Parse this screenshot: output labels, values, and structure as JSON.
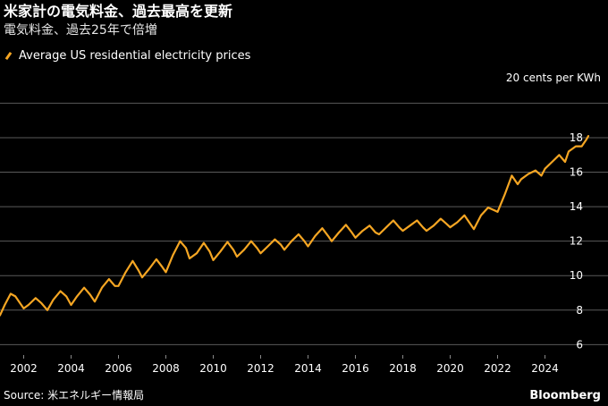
{
  "header": {
    "title": "米家計の電気料金、過去最高を更新",
    "subtitle": "電気料金、過去25年で倍増"
  },
  "colors": {
    "background": "#000000",
    "series": "#f5a623",
    "grid": "#5a5a5a",
    "text": "#ffffff"
  },
  "footer": {
    "source": "Source: 米エネルギー情報局",
    "brand": "Bloomberg"
  },
  "chart_data": {
    "type": "line",
    "unit_label": "20 cents per KWh",
    "legend": "Average US residential electricity prices",
    "legend_position": "top-left",
    "grid": true,
    "y_axis_side": "right",
    "xlim": [
      2001.0,
      2025.83
    ],
    "ylim": [
      5.5,
      20.8
    ],
    "y_ticks": [
      6,
      8,
      10,
      12,
      14,
      16,
      18
    ],
    "x_ticks": [
      2002,
      2004,
      2006,
      2008,
      2010,
      2012,
      2014,
      2016,
      2018,
      2020,
      2022,
      2024
    ],
    "series": [
      {
        "name": "Average US residential electricity prices",
        "anchors": [
          [
            2001.0,
            7.7
          ],
          [
            2001.2,
            8.3
          ],
          [
            2001.45,
            8.95
          ],
          [
            2001.65,
            8.8
          ],
          [
            2001.85,
            8.4
          ],
          [
            2002.0,
            8.1
          ],
          [
            2002.2,
            8.3
          ],
          [
            2002.5,
            8.7
          ],
          [
            2002.75,
            8.4
          ],
          [
            2003.0,
            8.0
          ],
          [
            2003.25,
            8.6
          ],
          [
            2003.55,
            9.1
          ],
          [
            2003.8,
            8.8
          ],
          [
            2004.0,
            8.3
          ],
          [
            2004.25,
            8.8
          ],
          [
            2004.55,
            9.3
          ],
          [
            2004.8,
            8.9
          ],
          [
            2005.0,
            8.5
          ],
          [
            2005.3,
            9.3
          ],
          [
            2005.6,
            9.8
          ],
          [
            2005.85,
            9.4
          ],
          [
            2006.0,
            9.4
          ],
          [
            2006.3,
            10.2
          ],
          [
            2006.6,
            10.85
          ],
          [
            2006.85,
            10.3
          ],
          [
            2007.0,
            9.9
          ],
          [
            2007.3,
            10.4
          ],
          [
            2007.6,
            10.95
          ],
          [
            2007.85,
            10.5
          ],
          [
            2008.0,
            10.2
          ],
          [
            2008.3,
            11.2
          ],
          [
            2008.6,
            12.0
          ],
          [
            2008.85,
            11.6
          ],
          [
            2009.0,
            11.0
          ],
          [
            2009.3,
            11.3
          ],
          [
            2009.6,
            11.9
          ],
          [
            2009.85,
            11.4
          ],
          [
            2010.0,
            10.9
          ],
          [
            2010.3,
            11.4
          ],
          [
            2010.6,
            11.95
          ],
          [
            2010.85,
            11.5
          ],
          [
            2011.0,
            11.1
          ],
          [
            2011.3,
            11.5
          ],
          [
            2011.6,
            12.0
          ],
          [
            2011.85,
            11.6
          ],
          [
            2012.0,
            11.3
          ],
          [
            2012.3,
            11.7
          ],
          [
            2012.6,
            12.1
          ],
          [
            2012.85,
            11.8
          ],
          [
            2013.0,
            11.5
          ],
          [
            2013.3,
            12.0
          ],
          [
            2013.6,
            12.4
          ],
          [
            2013.85,
            12.0
          ],
          [
            2014.0,
            11.7
          ],
          [
            2014.3,
            12.3
          ],
          [
            2014.6,
            12.75
          ],
          [
            2014.85,
            12.3
          ],
          [
            2015.0,
            12.0
          ],
          [
            2015.3,
            12.5
          ],
          [
            2015.6,
            12.95
          ],
          [
            2015.85,
            12.5
          ],
          [
            2016.0,
            12.2
          ],
          [
            2016.3,
            12.6
          ],
          [
            2016.6,
            12.9
          ],
          [
            2016.85,
            12.5
          ],
          [
            2017.0,
            12.4
          ],
          [
            2017.3,
            12.8
          ],
          [
            2017.6,
            13.2
          ],
          [
            2017.85,
            12.8
          ],
          [
            2018.0,
            12.6
          ],
          [
            2018.3,
            12.9
          ],
          [
            2018.6,
            13.2
          ],
          [
            2018.85,
            12.8
          ],
          [
            2019.0,
            12.6
          ],
          [
            2019.3,
            12.9
          ],
          [
            2019.6,
            13.3
          ],
          [
            2019.85,
            13.0
          ],
          [
            2020.0,
            12.8
          ],
          [
            2020.3,
            13.1
          ],
          [
            2020.6,
            13.5
          ],
          [
            2020.85,
            13.0
          ],
          [
            2021.0,
            12.7
          ],
          [
            2021.3,
            13.5
          ],
          [
            2021.6,
            13.95
          ],
          [
            2021.85,
            13.8
          ],
          [
            2022.0,
            13.7
          ],
          [
            2022.3,
            14.7
          ],
          [
            2022.6,
            15.8
          ],
          [
            2022.85,
            15.3
          ],
          [
            2023.0,
            15.6
          ],
          [
            2023.3,
            15.9
          ],
          [
            2023.6,
            16.1
          ],
          [
            2023.85,
            15.8
          ],
          [
            2024.0,
            16.2
          ],
          [
            2024.3,
            16.6
          ],
          [
            2024.6,
            17.0
          ],
          [
            2024.85,
            16.6
          ],
          [
            2025.0,
            17.2
          ],
          [
            2025.3,
            17.5
          ],
          [
            2025.55,
            17.5
          ],
          [
            2025.75,
            17.9
          ],
          [
            2025.83,
            18.1
          ]
        ]
      }
    ]
  }
}
